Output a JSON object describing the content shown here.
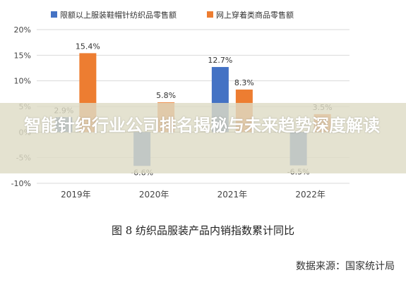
{
  "chart_data": {
    "type": "bar",
    "categories": [
      "2019年",
      "2020年",
      "2021年",
      "2022年"
    ],
    "series": [
      {
        "name": "限额以上服装鞋帽针纺织品零售额",
        "color": "#4472c4",
        "values": [
          2.9,
          -6.6,
          12.7,
          -6.5
        ]
      },
      {
        "name": "网上穿着类商品零售额",
        "color": "#ed7d31",
        "values": [
          15.4,
          5.8,
          8.3,
          3.5
        ]
      }
    ],
    "data_labels": [
      [
        "2.9%",
        "-6.6%",
        "12.7%",
        "-6.5%"
      ],
      [
        "15.4%",
        "5.8%",
        "8.3%",
        "3.5%"
      ]
    ],
    "ylim": [
      -10,
      20
    ],
    "yticks": [
      -10,
      -5,
      0,
      5,
      10,
      15,
      20
    ],
    "ytick_labels": [
      "-10%",
      "-5%",
      "0%",
      "5%",
      "10%",
      "15%",
      "20%"
    ],
    "grid": true,
    "legend_position": "top"
  },
  "figure": {
    "caption": "图 8   纺织品服装产品内销指数累计同比",
    "source": "数据来源：国家统计局"
  },
  "banner": {
    "title": "智能针织行业公司排名揭秘与未来趋势深度解读"
  }
}
